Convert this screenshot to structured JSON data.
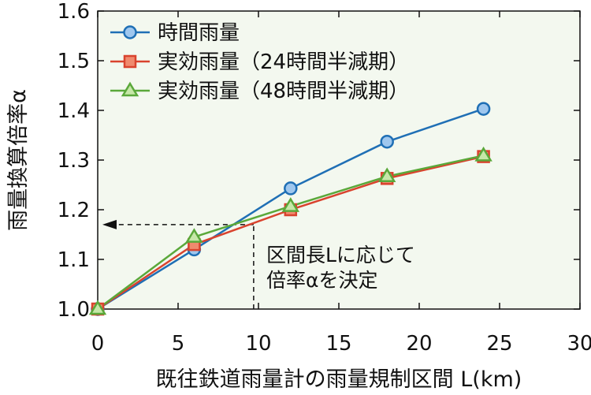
{
  "chart_data": {
    "type": "line",
    "xlabel": "既往鉄道雨量計の雨量規制区間 L(km)",
    "ylabel": "雨量換算倍率α",
    "xlim": [
      0,
      30
    ],
    "ylim": [
      1.0,
      1.6
    ],
    "x_ticks": [
      "0",
      "5",
      "10",
      "15",
      "20",
      "25",
      "30"
    ],
    "y_ticks": [
      "1.0",
      "1.1",
      "1.2",
      "1.3",
      "1.4",
      "1.5",
      "1.6"
    ],
    "grid": false,
    "legend_position": "top-left",
    "series": [
      {
        "name": "時間雨量",
        "marker": "circle",
        "color": "#1f6fb5",
        "x": [
          0,
          6,
          12,
          18,
          24
        ],
        "y": [
          1.0,
          1.12,
          1.243,
          1.337,
          1.403
        ]
      },
      {
        "name": "実効雨量（24時間半減期）",
        "marker": "square",
        "color": "#d9432e",
        "x": [
          0,
          6,
          12,
          18,
          24
        ],
        "y": [
          1.0,
          1.13,
          1.2,
          1.263,
          1.307
        ]
      },
      {
        "name": "実効雨量（48時間半減期）",
        "marker": "triangle",
        "color": "#5aa83a",
        "x": [
          0,
          6,
          12,
          18,
          24
        ],
        "y": [
          1.0,
          1.145,
          1.207,
          1.267,
          1.309
        ]
      }
    ],
    "annotation": {
      "lines": [
        "区間長Lに応じて",
        "倍率αを決定"
      ],
      "x": 9.7,
      "y": 1.17
    }
  }
}
